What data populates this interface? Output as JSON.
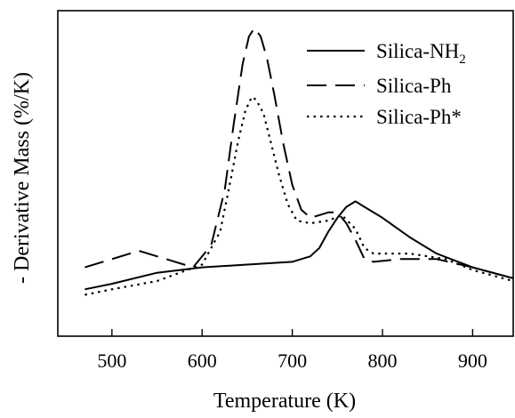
{
  "chart_data": {
    "type": "line",
    "xlabel": "Temperature (K)",
    "ylabel": "- Derivative Mass (%/K)",
    "xlim": [
      440,
      945
    ],
    "ylim": [
      0,
      1
    ],
    "x_ticks": [
      "500",
      "600",
      "700",
      "800",
      "900"
    ],
    "y_ticks_shown": false,
    "grid": false,
    "legend_position": "top-right",
    "series": [
      {
        "name": "Silica-NH2",
        "name_main": "Silica-NH",
        "name_sub": "2",
        "style": "solid",
        "x": [
          470,
          500,
          550,
          600,
          650,
          700,
          720,
          730,
          740,
          750,
          760,
          770,
          780,
          800,
          830,
          860,
          900,
          945
        ],
        "y": [
          0.08,
          0.1,
          0.14,
          0.16,
          0.17,
          0.18,
          0.2,
          0.23,
          0.29,
          0.34,
          0.38,
          0.4,
          0.38,
          0.34,
          0.27,
          0.21,
          0.16,
          0.12
        ]
      },
      {
        "name": "Silica-Ph",
        "style": "long-dash",
        "x": [
          470,
          500,
          530,
          560,
          590,
          610,
          625,
          635,
          645,
          652,
          658,
          665,
          672,
          680,
          690,
          700,
          710,
          720,
          730,
          740,
          750,
          760,
          770,
          780,
          790,
          820,
          860,
          900,
          945
        ],
        "y": [
          0.16,
          0.19,
          0.22,
          0.19,
          0.16,
          0.24,
          0.44,
          0.68,
          0.9,
          1.0,
          1.03,
          1.0,
          0.92,
          0.79,
          0.61,
          0.46,
          0.37,
          0.34,
          0.35,
          0.36,
          0.36,
          0.32,
          0.26,
          0.19,
          0.18,
          0.19,
          0.19,
          0.16,
          0.12
        ]
      },
      {
        "name": "Silica-Ph*",
        "style": "dotted",
        "x": [
          470,
          500,
          550,
          600,
          620,
          630,
          640,
          648,
          655,
          660,
          668,
          675,
          685,
          695,
          705,
          720,
          740,
          755,
          770,
          780,
          790,
          800,
          830,
          870,
          900,
          945
        ],
        "y": [
          0.06,
          0.08,
          0.11,
          0.17,
          0.29,
          0.45,
          0.62,
          0.73,
          0.78,
          0.77,
          0.72,
          0.63,
          0.5,
          0.39,
          0.33,
          0.32,
          0.33,
          0.35,
          0.3,
          0.23,
          0.21,
          0.21,
          0.21,
          0.19,
          0.15,
          0.11
        ]
      }
    ]
  }
}
